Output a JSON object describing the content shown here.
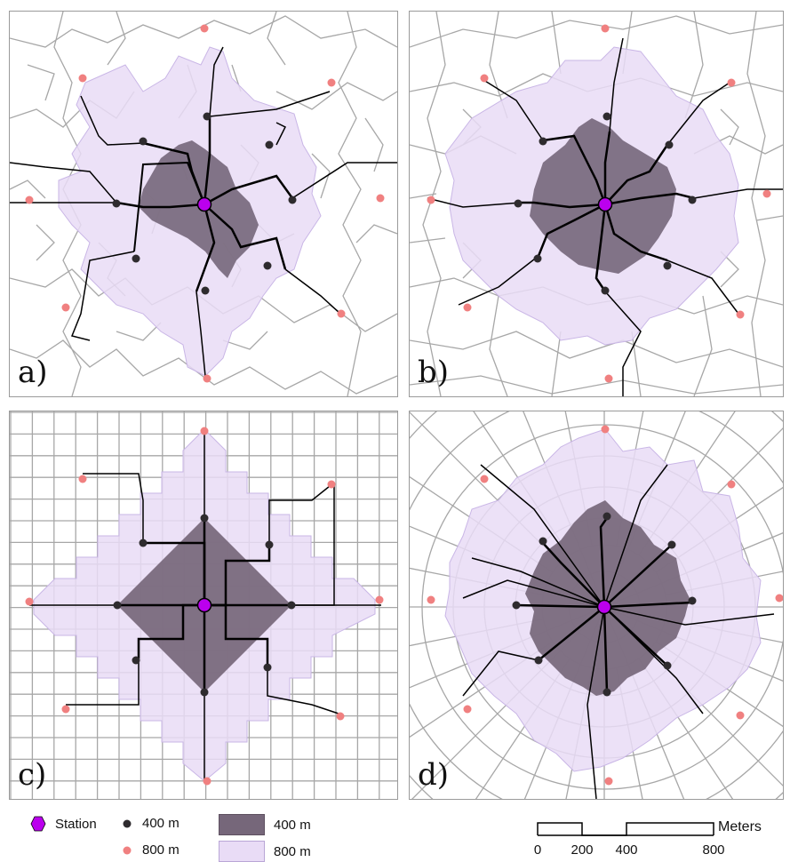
{
  "panels": [
    {
      "id": "a",
      "label": "a)",
      "pattern": "organic"
    },
    {
      "id": "b",
      "label": "b)",
      "pattern": "irregular-grid"
    },
    {
      "id": "c",
      "label": "c)",
      "pattern": "grid"
    },
    {
      "id": "d",
      "label": "d)",
      "pattern": "radial"
    }
  ],
  "legend": {
    "station": "Station",
    "point_400": "400 m",
    "point_800": "800 m",
    "area_400": "400 m",
    "area_800": "800 m"
  },
  "scalebar": {
    "unit": "Meters",
    "ticks": [
      "0",
      "200",
      "400",
      "800"
    ]
  },
  "colors": {
    "station": "#bb00ee",
    "point_400": "#2e2b2e",
    "point_800": "#f08080",
    "area_400": "#76677a",
    "area_800": "#e9dcf6",
    "streets": "#a7a7a7",
    "paths": "#000000"
  }
}
